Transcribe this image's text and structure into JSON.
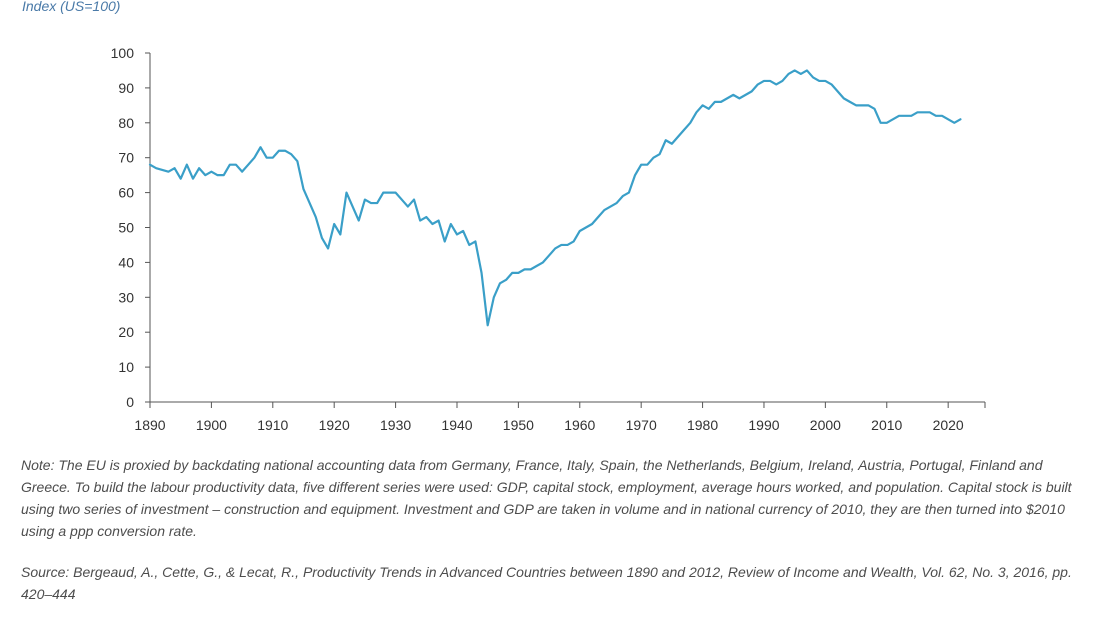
{
  "chart_data": {
    "type": "line",
    "ylabel": "Index (US=100)",
    "xlabel": "",
    "xlim": [
      1890,
      2026
    ],
    "ylim": [
      0,
      100
    ],
    "x_ticks": [
      1890,
      1900,
      1910,
      1920,
      1930,
      1940,
      1950,
      1960,
      1970,
      1980,
      1990,
      2000,
      2010,
      2020
    ],
    "y_ticks": [
      0,
      10,
      20,
      30,
      40,
      50,
      60,
      70,
      80,
      90,
      100
    ],
    "grid": false,
    "line_color": "#3a9fc8",
    "series": [
      {
        "x": [
          1890,
          1891,
          1892,
          1893,
          1894,
          1895,
          1896,
          1897,
          1898,
          1899,
          1900,
          1901,
          1902,
          1903,
          1904,
          1905,
          1906,
          1907,
          1908,
          1909,
          1910,
          1911,
          1912,
          1913,
          1914,
          1915,
          1916,
          1917,
          1918,
          1919,
          1920,
          1921,
          1922,
          1923,
          1924,
          1925,
          1926,
          1927,
          1928,
          1929,
          1930,
          1931,
          1932,
          1933,
          1934,
          1935,
          1936,
          1937,
          1938,
          1939,
          1940,
          1941,
          1942,
          1943,
          1944,
          1945,
          1946,
          1947,
          1948,
          1949,
          1950,
          1951,
          1952,
          1953,
          1954,
          1955,
          1956,
          1957,
          1958,
          1959,
          1960,
          1961,
          1962,
          1963,
          1964,
          1965,
          1966,
          1967,
          1968,
          1969,
          1970,
          1971,
          1972,
          1973,
          1974,
          1975,
          1976,
          1977,
          1978,
          1979,
          1980,
          1981,
          1982,
          1983,
          1984,
          1985,
          1986,
          1987,
          1988,
          1989,
          1990,
          1991,
          1992,
          1993,
          1994,
          1995,
          1996,
          1997,
          1998,
          1999,
          2000,
          2001,
          2002,
          2003,
          2004,
          2005,
          2006,
          2007,
          2008,
          2009,
          2010,
          2011,
          2012,
          2013,
          2014,
          2015,
          2016,
          2017,
          2018,
          2019,
          2020,
          2021,
          2022
        ],
        "values": [
          68,
          67,
          66.5,
          66,
          67,
          64,
          68,
          64,
          67,
          65,
          66,
          65,
          65,
          68,
          68,
          66,
          68,
          70,
          73,
          70,
          70,
          72,
          72,
          71,
          69,
          61,
          57,
          53,
          47,
          44,
          51,
          48,
          60,
          56,
          52,
          58,
          57,
          57,
          60,
          60,
          60,
          58,
          56,
          58,
          52,
          53,
          51,
          52,
          46,
          51,
          48,
          49,
          45,
          46,
          37,
          22,
          30,
          34,
          35,
          37,
          37,
          38,
          38,
          39,
          40,
          42,
          44,
          45,
          45,
          46,
          49,
          50,
          51,
          53,
          55,
          56,
          57,
          59,
          60,
          65,
          68,
          68,
          70,
          71,
          75,
          74,
          76,
          78,
          80,
          83,
          85,
          84,
          86,
          86,
          87,
          88,
          87,
          88,
          89,
          91,
          92,
          92,
          91,
          92,
          94,
          95,
          94,
          95,
          93,
          92,
          92,
          91,
          89,
          87,
          86,
          85,
          85,
          85,
          84,
          80,
          80,
          81,
          82,
          82,
          82,
          83,
          83,
          83,
          82,
          82,
          81,
          80,
          81
        ]
      }
    ]
  },
  "note": "Note: The EU is proxied by backdating national accounting data from Germany, France, Italy, Spain, the Netherlands, Belgium, Ireland, Austria, Portugal, Finland and Greece. To build the labour productivity data, five different series were used: GDP, capital stock, employment, average hours worked, and population. Capital stock is built using two series of investment – construction and equipment. Investment and GDP are taken in volume and in national currency of 2010, they are then turned into $2010 using a ppp conversion rate.",
  "source": "Source: Bergeaud, A., Cette, G., & Lecat, R., Productivity Trends in Advanced Countries between 1890 and 2012, Review of Income and Wealth, Vol. 62, No. 3, 2016, pp. 420–444"
}
